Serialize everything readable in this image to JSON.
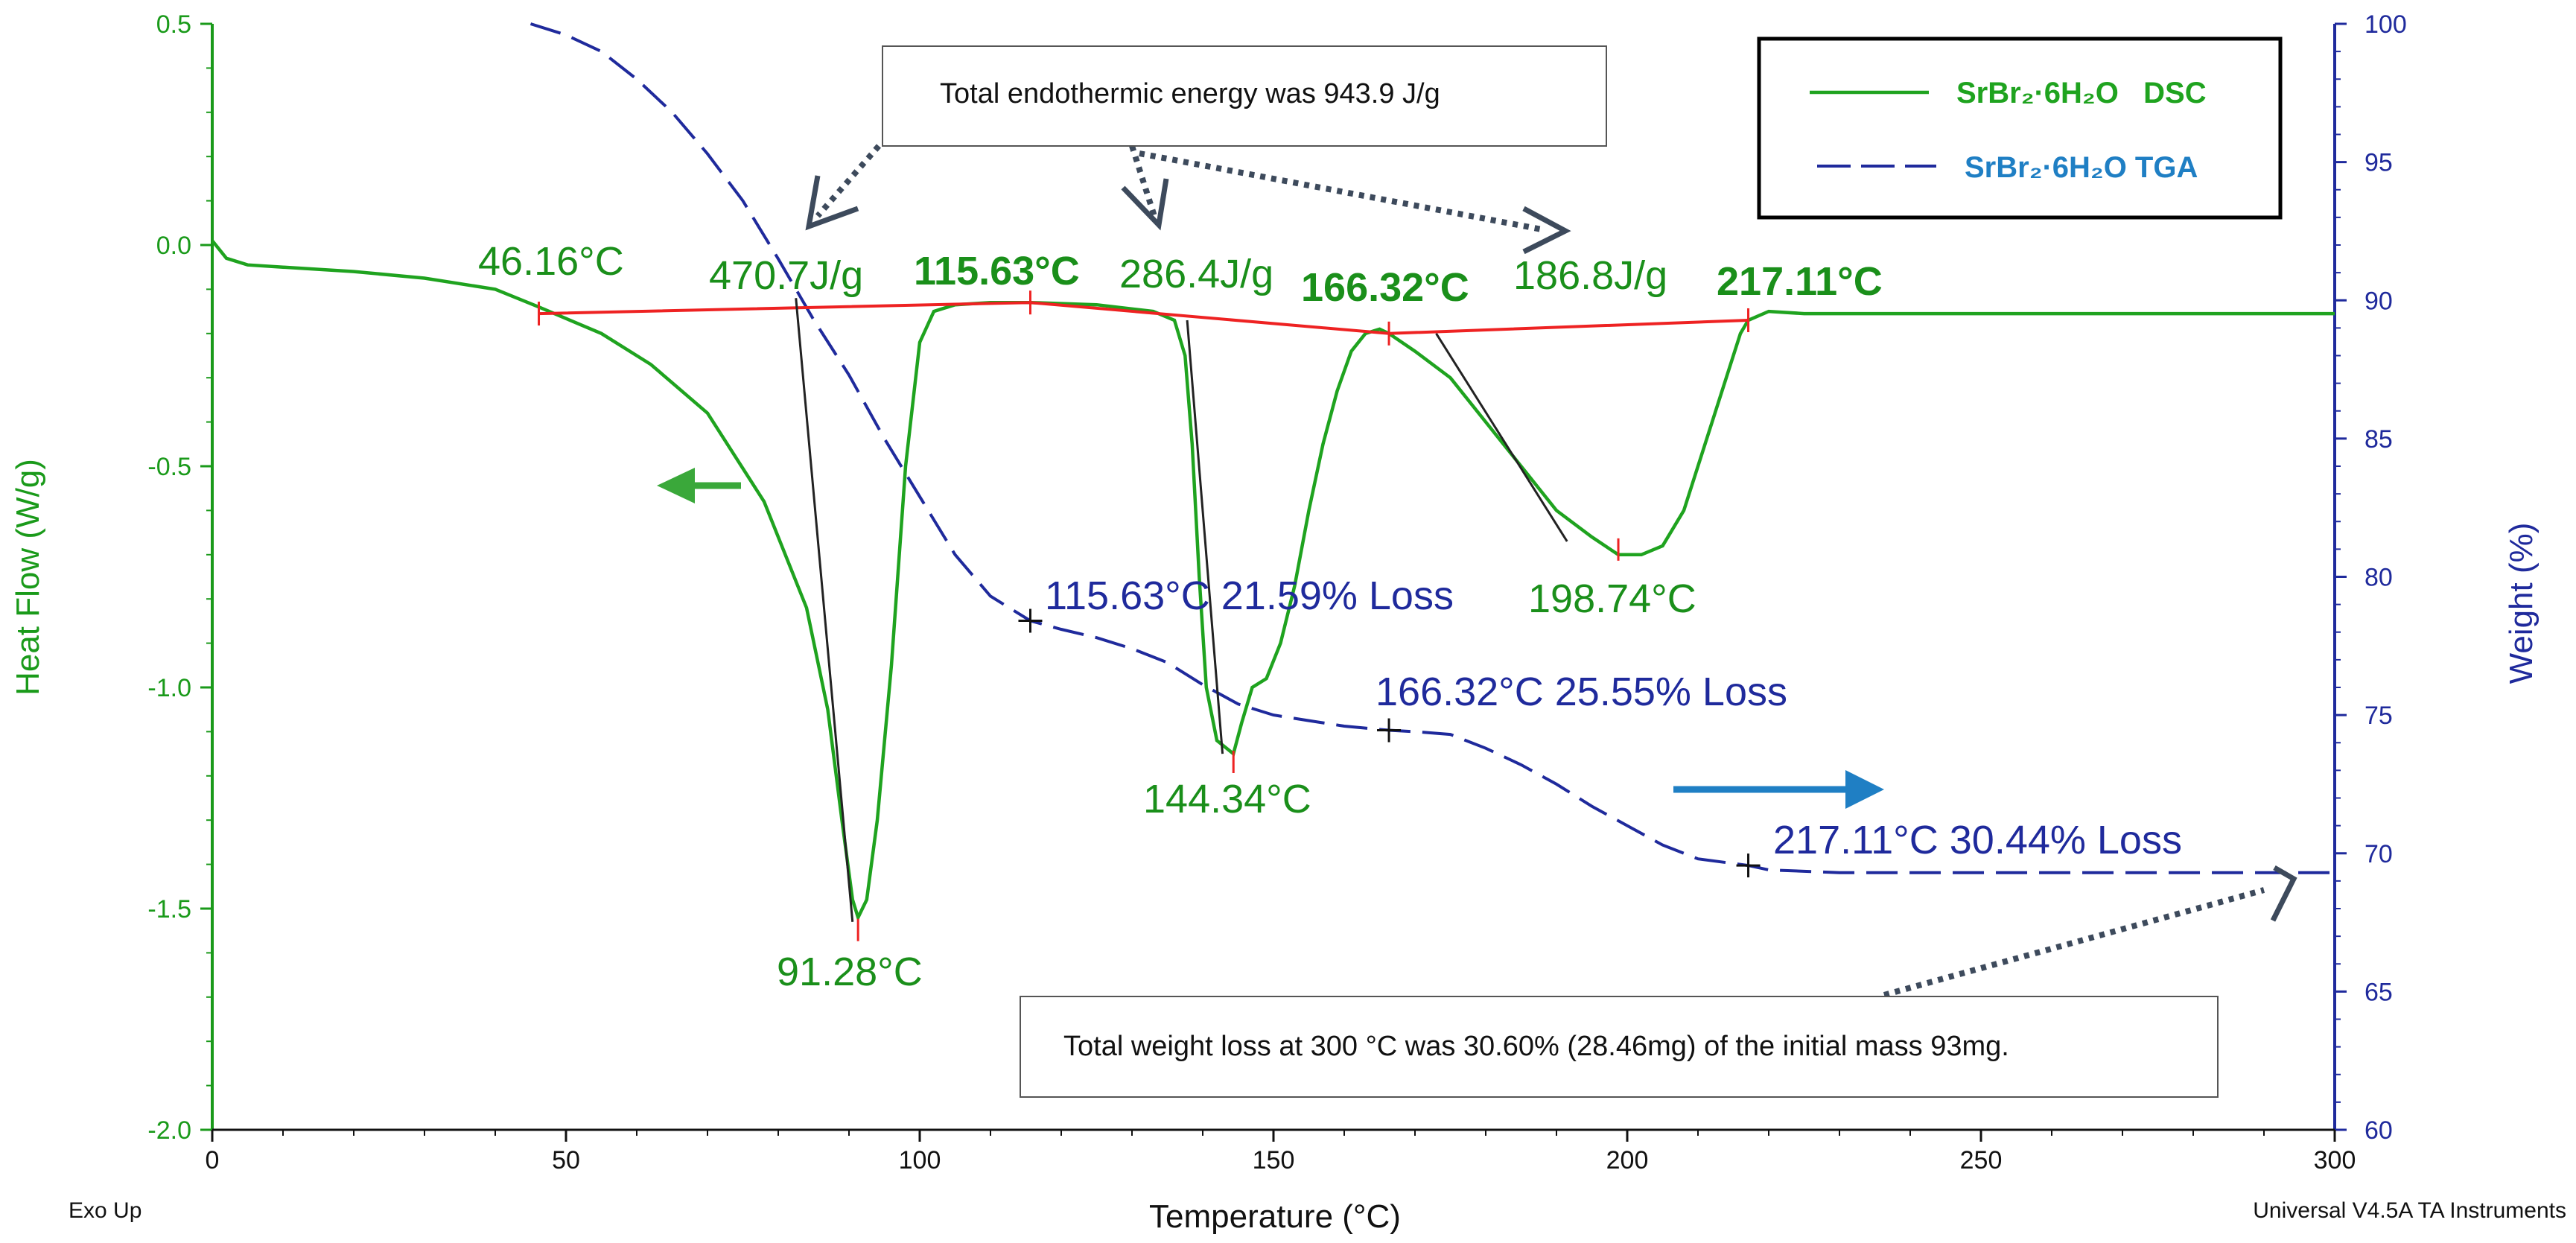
{
  "chart_data": {
    "type": "line",
    "x": {
      "label": "Temperature (°C)",
      "range": [
        0,
        300
      ],
      "major_ticks": [
        0,
        50,
        100,
        150,
        200,
        250,
        300
      ],
      "tick_labels": [
        "0",
        "50",
        "100",
        "150",
        "200",
        "250",
        "300"
      ]
    },
    "y_left": {
      "label": "Heat Flow (W/g)",
      "range": [
        -2.0,
        0.5
      ],
      "ticks": [
        0.5,
        0.0,
        -0.5,
        -1.0,
        -1.5,
        -2.0
      ],
      "tick_labels": [
        "0.5",
        "0.0",
        "-0.5",
        "-1.0",
        "-1.5",
        "-2.0"
      ],
      "color": "#1a9a1a"
    },
    "y_right": {
      "label": "Weight (%)",
      "range": [
        60,
        100
      ],
      "ticks": [
        100,
        95,
        90,
        85,
        80,
        75,
        70,
        65,
        60
      ],
      "tick_labels": [
        "100",
        "95",
        "90",
        "85",
        "80",
        "75",
        "70",
        "65",
        "60"
      ],
      "color": "#1f2a9c"
    },
    "series": [
      {
        "name": "SrBr₂·6H₂O DSC",
        "axis": "left",
        "color": "#1fa31f",
        "style": "solid",
        "points": [
          [
            0,
            0.01
          ],
          [
            2,
            -0.03
          ],
          [
            5,
            -0.045
          ],
          [
            10,
            -0.05
          ],
          [
            20,
            -0.06
          ],
          [
            30,
            -0.075
          ],
          [
            40,
            -0.1
          ],
          [
            46.16,
            -0.14
          ],
          [
            55,
            -0.2
          ],
          [
            62,
            -0.27
          ],
          [
            70,
            -0.38
          ],
          [
            78,
            -0.58
          ],
          [
            84,
            -0.82
          ],
          [
            87,
            -1.05
          ],
          [
            89,
            -1.3
          ],
          [
            90.5,
            -1.48
          ],
          [
            91.28,
            -1.52
          ],
          [
            92.5,
            -1.48
          ],
          [
            94,
            -1.3
          ],
          [
            96,
            -0.95
          ],
          [
            98,
            -0.5
          ],
          [
            100,
            -0.22
          ],
          [
            102,
            -0.15
          ],
          [
            105,
            -0.135
          ],
          [
            110,
            -0.13
          ],
          [
            115.63,
            -0.13
          ],
          [
            125,
            -0.135
          ],
          [
            133,
            -0.15
          ],
          [
            136,
            -0.17
          ],
          [
            137.5,
            -0.25
          ],
          [
            138.5,
            -0.45
          ],
          [
            139.5,
            -0.75
          ],
          [
            140.5,
            -1.0
          ],
          [
            142,
            -1.12
          ],
          [
            144.34,
            -1.15
          ],
          [
            145.5,
            -1.08
          ],
          [
            147,
            -1.0
          ],
          [
            149,
            -0.98
          ],
          [
            151,
            -0.9
          ],
          [
            153,
            -0.77
          ],
          [
            155,
            -0.6
          ],
          [
            157,
            -0.45
          ],
          [
            159,
            -0.33
          ],
          [
            161,
            -0.24
          ],
          [
            163,
            -0.2
          ],
          [
            165,
            -0.19
          ],
          [
            166.32,
            -0.2
          ],
          [
            170,
            -0.24
          ],
          [
            175,
            -0.3
          ],
          [
            180,
            -0.4
          ],
          [
            185,
            -0.5
          ],
          [
            190,
            -0.6
          ],
          [
            195,
            -0.66
          ],
          [
            198.74,
            -0.7
          ],
          [
            202,
            -0.7
          ],
          [
            205,
            -0.68
          ],
          [
            208,
            -0.6
          ],
          [
            211,
            -0.45
          ],
          [
            214,
            -0.3
          ],
          [
            216,
            -0.2
          ],
          [
            217.11,
            -0.17
          ],
          [
            220,
            -0.15
          ],
          [
            225,
            -0.155
          ],
          [
            250,
            -0.155
          ],
          [
            275,
            -0.155
          ],
          [
            300,
            -0.155
          ]
        ]
      },
      {
        "name": "SrBr₂·6H₂O TGA",
        "axis": "right",
        "color": "#1f2a9c",
        "style": "dashed",
        "points": [
          [
            45,
            100
          ],
          [
            50,
            99.6
          ],
          [
            55,
            99
          ],
          [
            60,
            98
          ],
          [
            65,
            96.8
          ],
          [
            70,
            95.3
          ],
          [
            75,
            93.6
          ],
          [
            80,
            91.5
          ],
          [
            85,
            89.3
          ],
          [
            90,
            87.3
          ],
          [
            95,
            85
          ],
          [
            100,
            82.9
          ],
          [
            105,
            80.8
          ],
          [
            110,
            79.3
          ],
          [
            115.63,
            78.41
          ],
          [
            120,
            78.1
          ],
          [
            125,
            77.8
          ],
          [
            130,
            77.4
          ],
          [
            135,
            76.9
          ],
          [
            140,
            76.1
          ],
          [
            145,
            75.4
          ],
          [
            150,
            75
          ],
          [
            155,
            74.8
          ],
          [
            160,
            74.6
          ],
          [
            166.32,
            74.45
          ],
          [
            170,
            74.4
          ],
          [
            175,
            74.3
          ],
          [
            180,
            73.8
          ],
          [
            185,
            73.2
          ],
          [
            190,
            72.5
          ],
          [
            195,
            71.7
          ],
          [
            200,
            71
          ],
          [
            205,
            70.3
          ],
          [
            210,
            69.8
          ],
          [
            217.11,
            69.56
          ],
          [
            220,
            69.4
          ],
          [
            230,
            69.3
          ],
          [
            250,
            69.3
          ],
          [
            275,
            69.3
          ],
          [
            300,
            69.3
          ]
        ]
      },
      {
        "name": "integration baseline",
        "axis": "left",
        "color": "#ee2222",
        "style": "solid",
        "points": [
          [
            46.16,
            -0.155
          ],
          [
            115.63,
            -0.13
          ],
          [
            166.32,
            -0.2
          ],
          [
            217.11,
            -0.17
          ]
        ]
      }
    ],
    "tangent_lines": [
      {
        "from": [
          82.5,
          -0.12
        ],
        "to": [
          90.5,
          -1.53
        ]
      },
      {
        "from": [
          137.8,
          -0.17
        ],
        "to": [
          142.8,
          -1.15
        ]
      },
      {
        "from": [
          173,
          -0.2
        ],
        "to": [
          191.5,
          -0.67
        ]
      }
    ],
    "baseline_ticks": [
      46.16,
      115.63,
      166.32,
      217.11
    ],
    "peak_ticks": [
      [
        91.28,
        -1.55
      ],
      [
        144.34,
        -1.17
      ],
      [
        198.74,
        -0.69
      ]
    ],
    "tga_markers": [
      [
        115.63,
        78.41
      ],
      [
        166.32,
        74.45
      ],
      [
        217.11,
        69.56
      ]
    ],
    "annotations": {
      "onset1": "46.16°C",
      "enthalpy1": "470.7J/g",
      "boundary1": "115.63°C",
      "enthalpy2": "286.4J/g",
      "boundary2": "166.32°C",
      "enthalpy3": "186.8J/g",
      "boundary3": "217.11°C",
      "peak1": "91.28°C",
      "peak2": "144.34°C",
      "peak3": "198.74°C",
      "loss1": "115.63°C 21.59% Loss",
      "loss2": "166.32°C 25.55% Loss",
      "loss3": "217.11°C 30.44% Loss"
    },
    "notes": {
      "energy": "Total endothermic energy was 943.9 J/g",
      "weight": "Total weight loss at 300 °C was 30.60% (28.46mg) of the initial mass 93mg."
    },
    "legend": {
      "position": "top-right",
      "entries": [
        {
          "label": "SrBr₂·6H₂O   DSC",
          "color": "#1fa31f"
        },
        {
          "label": "SrBr₂·6H₂O TGA",
          "color": "#1f7fc4"
        }
      ]
    },
    "footer": {
      "left": "Exo Up",
      "right": "Universal V4.5A TA Instruments"
    }
  }
}
